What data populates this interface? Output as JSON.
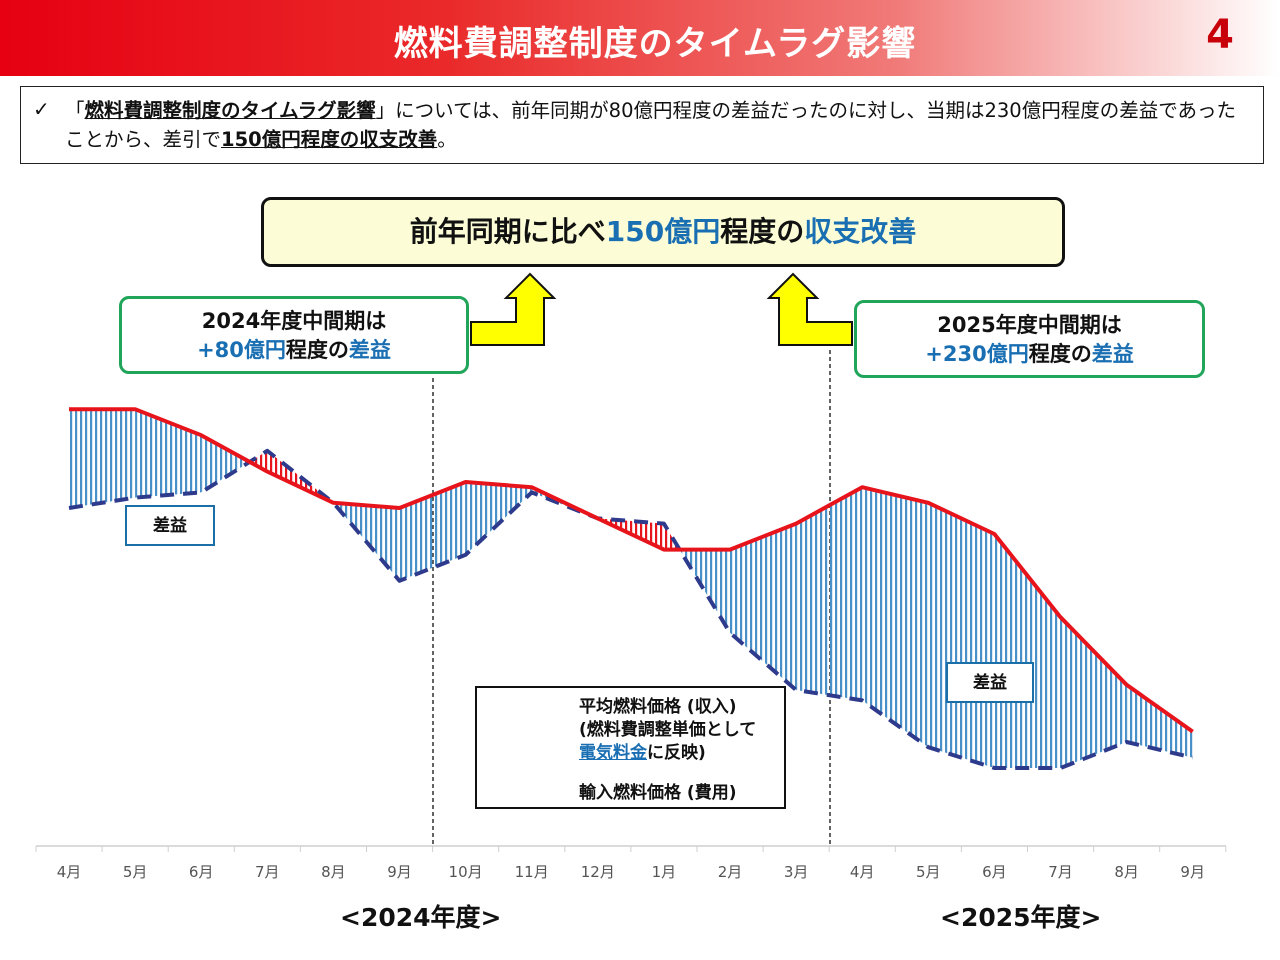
{
  "header": {
    "title": "燃料費調整制度のタイムラグ影響",
    "page_number": "4"
  },
  "summary": {
    "check_icon": "checkmark-icon",
    "part1": "「",
    "part2": "燃料費調整制度のタイムラグ影響",
    "part3": "」については、前年同期が80億円程度の差益だったのに対し、当期は230億円程度の差益であったことから、差引で",
    "part4": "150億円程度の収支改善",
    "part5": "。"
  },
  "result_box": {
    "prefix": "前年同期に比べ",
    "amount": "150億円",
    "middle": "程度の",
    "highlight": "収支改善"
  },
  "period_2024": {
    "line1": "2024年度中間期は",
    "amount": "+80億円",
    "middle": "程度の",
    "highlight": "差益"
  },
  "period_2025": {
    "line1": "2025年度中間期は",
    "amount": "+230億円",
    "middle": "程度の",
    "highlight": "差益"
  },
  "labels": {
    "saeki_1": "差益",
    "saeki_2": "差益"
  },
  "legend": {
    "revenue_line1": "平均燃料価格 (収入)",
    "revenue_line2": "(燃料費調整単価として",
    "revenue_link": "電気料金",
    "revenue_line3_suffix": "に反映)",
    "cost": "輸入燃料価格 (費用)"
  },
  "fiscal_years": {
    "fy2024": "<2024年度>",
    "fy2025": "<2025年度>"
  },
  "colors": {
    "revenue_line": "#e8141c",
    "cost_line": "#2e3a8c",
    "gain_fill": "#4a90c8",
    "loss_fill": "#e8141c",
    "title_red": "#e60012",
    "accent_blue": "#1a6fb3",
    "box_green": "#20a55a",
    "arrow_yellow": "#ffff00"
  },
  "chart_data": {
    "type": "line",
    "categories": [
      "4月",
      "5月",
      "6月",
      "7月",
      "8月",
      "9月",
      "10月",
      "11月",
      "12月",
      "1月",
      "2月",
      "3月",
      "4月",
      "5月",
      "6月",
      "7月",
      "8月",
      "9月"
    ],
    "series": [
      {
        "name": "平均燃料価格 (収入)",
        "values": [
          0.84,
          0.84,
          0.79,
          0.72,
          0.66,
          0.65,
          0.7,
          0.69,
          0.63,
          0.57,
          0.57,
          0.62,
          0.69,
          0.66,
          0.6,
          0.44,
          0.31,
          0.22
        ]
      },
      {
        "name": "輸入燃料価格 (費用)",
        "values": [
          0.65,
          0.67,
          0.68,
          0.76,
          0.66,
          0.51,
          0.56,
          0.68,
          0.63,
          0.62,
          0.41,
          0.3,
          0.28,
          0.19,
          0.15,
          0.15,
          0.2,
          0.17
        ]
      }
    ],
    "fill_between": "series difference shaded (gain blue, loss red)",
    "axis_labels": "none",
    "y_ticks": "none"
  }
}
